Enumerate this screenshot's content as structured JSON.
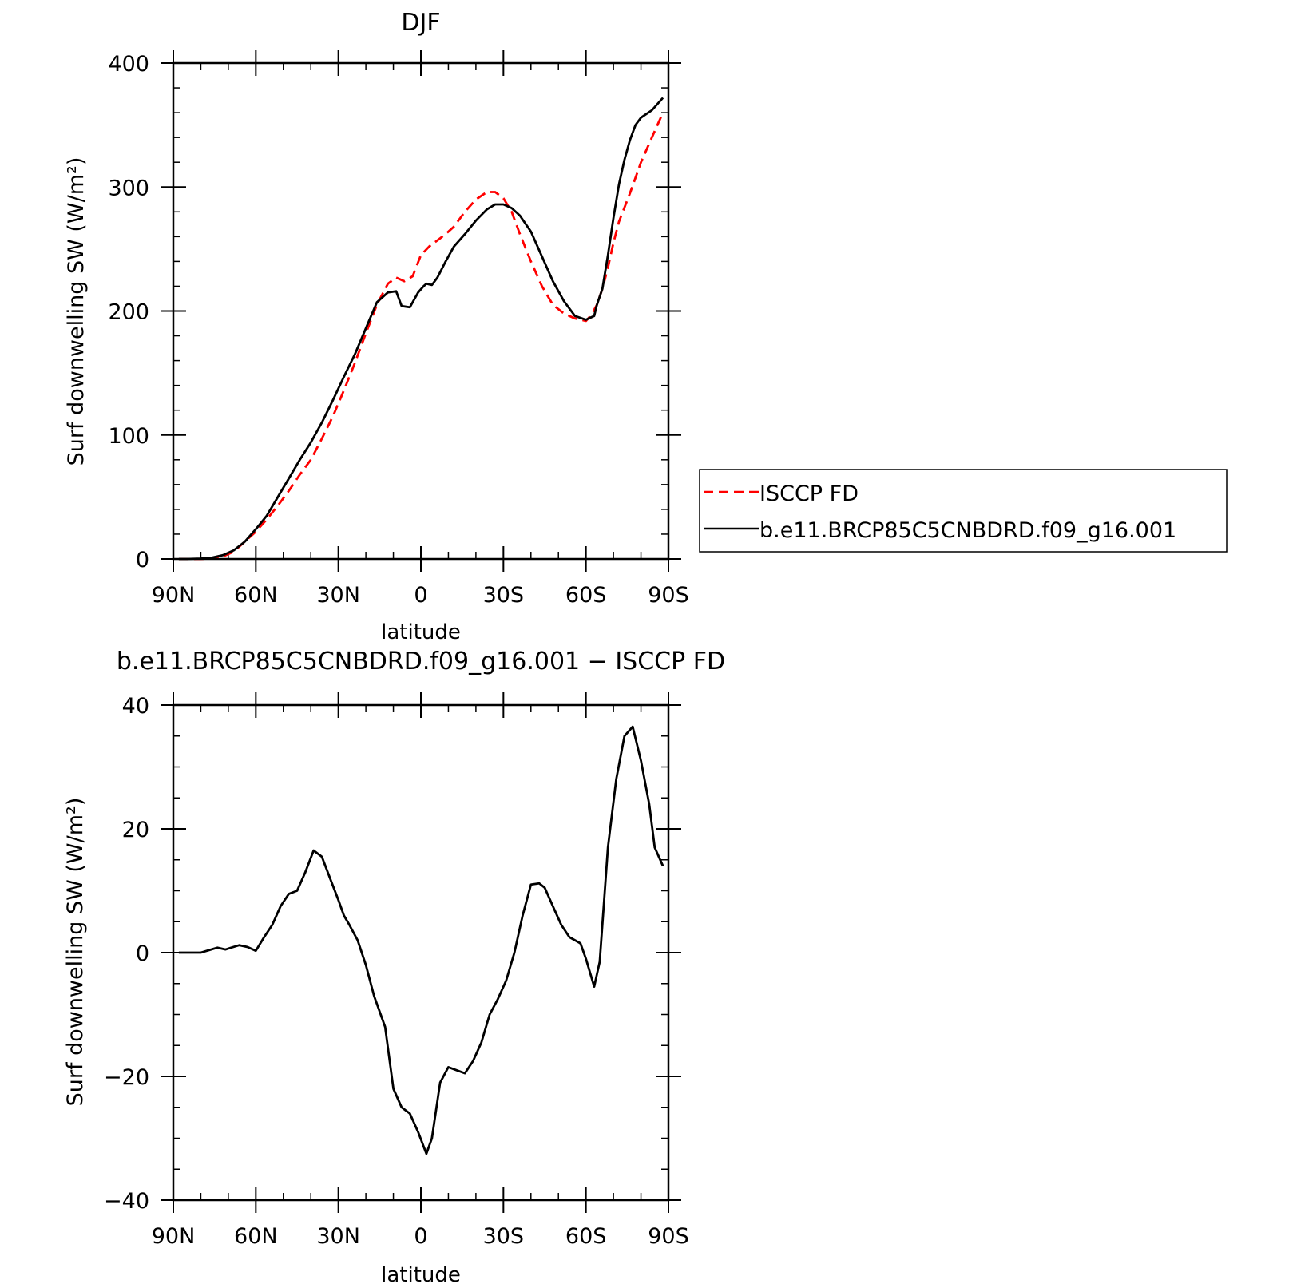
{
  "figure": {
    "legend": {
      "entries": [
        {
          "label": "ISCCP FD",
          "color": "#ff0000",
          "style": "dashed"
        },
        {
          "label": "b.e11.BRCP85C5CNBDRD.f09_g16.001",
          "color": "#000000",
          "style": "solid"
        }
      ]
    }
  },
  "chart_data": [
    {
      "type": "line",
      "title": "DJF",
      "xlabel": "latitude",
      "ylabel": "Surf downwelling SW (W/m²)",
      "xlim": [
        90,
        -90
      ],
      "ylim": [
        0,
        400
      ],
      "x_ticks": [
        {
          "value": 90,
          "label": "90N"
        },
        {
          "value": 60,
          "label": "60N"
        },
        {
          "value": 30,
          "label": "30N"
        },
        {
          "value": 0,
          "label": "0"
        },
        {
          "value": -30,
          "label": "30S"
        },
        {
          "value": -60,
          "label": "60S"
        },
        {
          "value": -90,
          "label": "90S"
        }
      ],
      "y_ticks": [
        {
          "value": 0,
          "label": "0"
        },
        {
          "value": 100,
          "label": "100"
        },
        {
          "value": 200,
          "label": "200"
        },
        {
          "value": 300,
          "label": "300"
        },
        {
          "value": 400,
          "label": "400"
        }
      ],
      "series": [
        {
          "name": "ISCCP FD",
          "color": "#ff0000",
          "dash": "dashed",
          "x": [
            88,
            85,
            80,
            76,
            72,
            68,
            64,
            60,
            56,
            52,
            48,
            44,
            40,
            36,
            32,
            28,
            24,
            20,
            16,
            12,
            9,
            6,
            3,
            0,
            -3,
            -6,
            -9,
            -12,
            -16,
            -20,
            -24,
            -27,
            -30,
            -33,
            -36,
            -40,
            -44,
            -48,
            -52,
            -56,
            -60,
            -62,
            -64,
            -66,
            -68,
            -70,
            -72,
            -76,
            -80,
            -84,
            -88
          ],
          "y": [
            0,
            0,
            0,
            0.5,
            2,
            6,
            14,
            22,
            32,
            43,
            55,
            68,
            80,
            97,
            115,
            136,
            158,
            182,
            205,
            222,
            227,
            224,
            228,
            245,
            252,
            257,
            262,
            268,
            280,
            290,
            296,
            296,
            291,
            280,
            262,
            240,
            220,
            205,
            198,
            194,
            192,
            197,
            205,
            218,
            235,
            255,
            272,
            295,
            320,
            340,
            360
          ]
        },
        {
          "name": "b.e11.BRCP85C5CNBDRD.f09_g16.001",
          "color": "#000000",
          "dash": "solid",
          "x": [
            88,
            85,
            80,
            76,
            72,
            68,
            64,
            60,
            56,
            52,
            48,
            44,
            40,
            36,
            32,
            28,
            24,
            20,
            16,
            12,
            9,
            7,
            4,
            1,
            -1,
            -2,
            -4,
            -6,
            -9,
            -12,
            -16,
            -20,
            -24,
            -27,
            -30,
            -33,
            -36,
            -40,
            -44,
            -48,
            -52,
            -56,
            -60,
            -61,
            -63,
            -64,
            -66,
            -68,
            -70,
            -72,
            -74,
            -76,
            -78,
            -80,
            -84,
            -88
          ],
          "y": [
            0,
            0,
            0.3,
            1,
            3,
            7,
            14,
            24,
            35,
            50,
            65,
            80,
            94,
            110,
            128,
            147,
            165,
            186,
            207,
            215,
            216,
            204,
            203,
            215,
            220,
            222,
            221,
            227,
            240,
            252,
            262,
            273,
            282,
            286,
            286,
            283,
            277,
            264,
            244,
            224,
            208,
            196,
            193,
            194,
            196,
            205,
            218,
            245,
            275,
            302,
            322,
            338,
            350,
            356,
            362,
            372
          ]
        }
      ]
    },
    {
      "type": "line",
      "title": "b.e11.BRCP85C5CNBDRD.f09_g16.001 − ISCCP FD",
      "xlabel": "latitude",
      "ylabel": "Surf downwelling SW (W/m²)",
      "xlim": [
        90,
        -90
      ],
      "ylim": [
        -40,
        40
      ],
      "x_ticks": [
        {
          "value": 90,
          "label": "90N"
        },
        {
          "value": 60,
          "label": "60N"
        },
        {
          "value": 30,
          "label": "30N"
        },
        {
          "value": 0,
          "label": "0"
        },
        {
          "value": -30,
          "label": "30S"
        },
        {
          "value": -60,
          "label": "60S"
        },
        {
          "value": -90,
          "label": "90S"
        }
      ],
      "y_ticks": [
        {
          "value": -40,
          "label": "−40"
        },
        {
          "value": -20,
          "label": "−20"
        },
        {
          "value": 0,
          "label": "0"
        },
        {
          "value": 20,
          "label": "20"
        },
        {
          "value": 40,
          "label": "40"
        }
      ],
      "series": [
        {
          "color": "#000000",
          "dash": "solid",
          "x": [
            88,
            85,
            80,
            77,
            74,
            71,
            69,
            66,
            63,
            60,
            57,
            54,
            51,
            48,
            45,
            42,
            39,
            36,
            33,
            30,
            28,
            26,
            23,
            20,
            17,
            13,
            10,
            7,
            4,
            1,
            -2,
            -4,
            -7,
            -10,
            -13,
            -16,
            -19,
            -22,
            -25,
            -28,
            -31,
            -34,
            -37,
            -40,
            -43,
            -45,
            -48,
            -51,
            -54,
            -58,
            -60,
            -63,
            -65,
            -68,
            -71,
            -74,
            -77,
            -80,
            -83,
            -85,
            -88
          ],
          "y": [
            0,
            0,
            0,
            0.4,
            0.8,
            0.5,
            0.8,
            1.2,
            0.9,
            0.3,
            2.5,
            4.5,
            7.5,
            9.5,
            10,
            13,
            16.5,
            15.5,
            12,
            8.5,
            6,
            4.5,
            2,
            -2,
            -7,
            -12,
            -22,
            -25,
            -26,
            -29,
            -32.5,
            -30,
            -21,
            -18.5,
            -19,
            -19.5,
            -17.5,
            -14.5,
            -10,
            -7.5,
            -4.5,
            0,
            6,
            11,
            11.2,
            10.5,
            7.5,
            4.5,
            2.5,
            1.5,
            -1,
            -5.5,
            -1.5,
            17,
            28,
            35,
            36.5,
            31,
            24,
            17,
            14
          ]
        }
      ]
    }
  ]
}
